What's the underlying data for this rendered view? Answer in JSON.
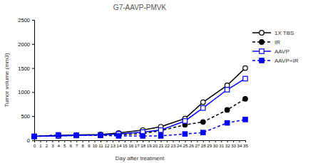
{
  "chart_data": {
    "type": "line",
    "title": "G7-AAVP-PMVK",
    "x_label": "Day after treatment",
    "y_label": "Tumor volume (mm3)",
    "x": [
      0,
      4,
      7,
      11,
      14,
      18,
      21,
      25,
      28,
      32,
      35
    ],
    "xlim": [
      0,
      35
    ],
    "xticks": [
      0,
      1,
      2,
      3,
      4,
      5,
      6,
      7,
      8,
      9,
      10,
      11,
      12,
      13,
      14,
      15,
      16,
      17,
      18,
      19,
      20,
      21,
      22,
      23,
      24,
      25,
      26,
      27,
      28,
      29,
      30,
      31,
      32,
      33,
      34,
      35
    ],
    "ylim": [
      0,
      2500
    ],
    "yticks": [
      0,
      500,
      1000,
      1500,
      2000,
      2500
    ],
    "grid": false,
    "legend": "right",
    "series": [
      {
        "name": "1X TBS",
        "color": "#000000",
        "marker": "circle-open",
        "line_style": "solid",
        "values": [
          80,
          100,
          110,
          120,
          150,
          210,
          280,
          450,
          790,
          1140,
          1500
        ]
      },
      {
        "name": "IR",
        "color": "#000000",
        "marker": "circle",
        "line_style": "dashed",
        "values": [
          80,
          90,
          100,
          100,
          110,
          140,
          200,
          320,
          380,
          630,
          860
        ]
      },
      {
        "name": "AAVP",
        "color": "#0000ff",
        "marker": "square-open",
        "line_style": "solid",
        "values": [
          80,
          90,
          100,
          110,
          130,
          170,
          210,
          400,
          670,
          1050,
          1280
        ]
      },
      {
        "name": "AAVP+IR",
        "color": "#0000ff",
        "marker": "square",
        "line_style": "dashed",
        "values": [
          80,
          110,
          100,
          100,
          90,
          90,
          90,
          130,
          160,
          360,
          430
        ]
      }
    ]
  }
}
